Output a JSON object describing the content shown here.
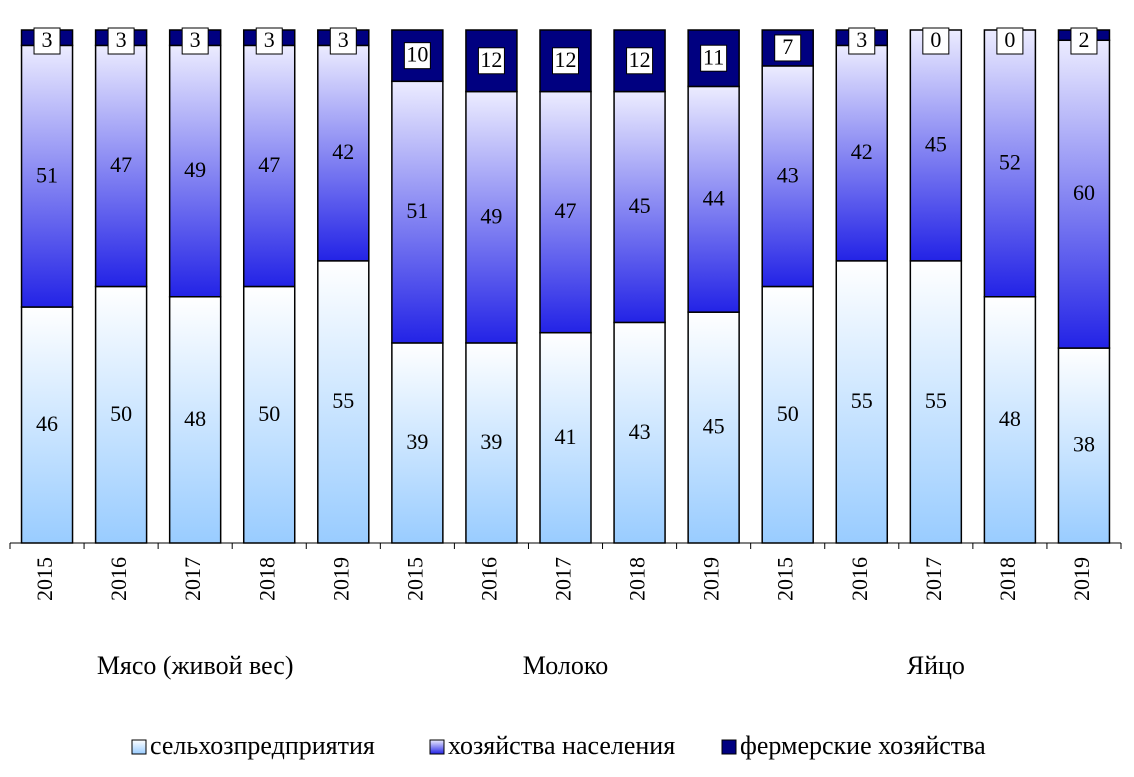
{
  "chart_data": {
    "type": "stacked_bar",
    "categories": [
      "2015",
      "2016",
      "2017",
      "2018",
      "2019",
      "2015",
      "2016",
      "2017",
      "2018",
      "2019",
      "2015",
      "2016",
      "2017",
      "2018",
      "2019"
    ],
    "groups": [
      "Мясо (живой вес)",
      "Молоко",
      "Яйцо"
    ],
    "ylim": [
      0,
      100
    ],
    "series": [
      {
        "name": "сельхозпредприятия",
        "color": "#99ccff",
        "values": [
          46,
          50,
          48,
          50,
          55,
          39,
          39,
          41,
          43,
          45,
          50,
          55,
          55,
          48,
          38
        ]
      },
      {
        "name": "хозяйства населения",
        "color": "#2323e6",
        "values": [
          51,
          47,
          49,
          47,
          42,
          51,
          49,
          47,
          45,
          44,
          43,
          42,
          45,
          52,
          60
        ]
      },
      {
        "name": "фермерские хозяйства",
        "color": "#000080",
        "values": [
          3,
          3,
          3,
          3,
          3,
          10,
          12,
          12,
          12,
          11,
          7,
          3,
          0,
          0,
          2
        ]
      }
    ]
  }
}
